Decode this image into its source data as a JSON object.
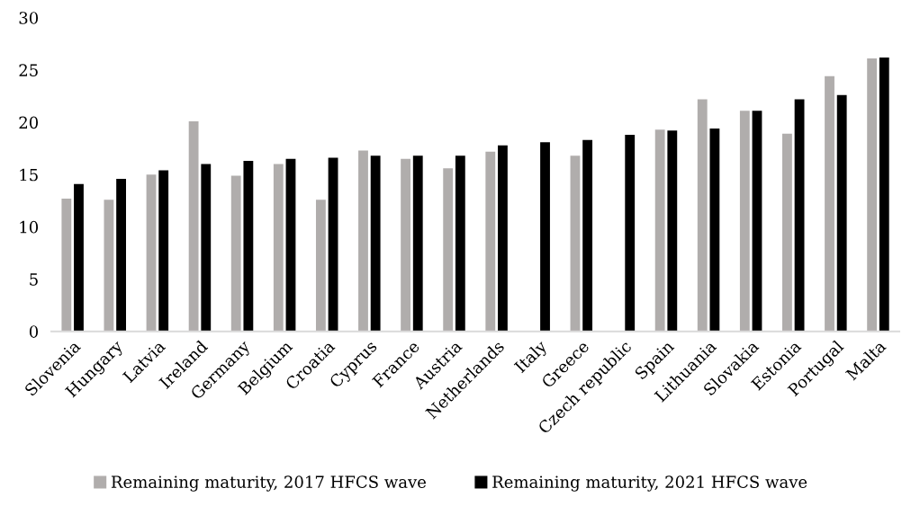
{
  "chart_data": {
    "type": "bar",
    "categories": [
      "Slovenia",
      "Hungary",
      "Latvia",
      "Ireland",
      "Germany",
      "Belgium",
      "Croatia",
      "Cyprus",
      "France",
      "Austria",
      "Netherlands",
      "Italy",
      "Greece",
      "Czech republic",
      "Spain",
      "Lithuania",
      "Slovakia",
      "Estonia",
      "Portugal",
      "Malta"
    ],
    "series": [
      {
        "name": "Remaining maturity, 2017 HFCS wave",
        "color": "#b0adac",
        "values": [
          12.7,
          12.6,
          15.0,
          20.1,
          14.9,
          16.0,
          12.6,
          17.3,
          16.5,
          15.6,
          17.2,
          null,
          16.8,
          null,
          19.3,
          22.2,
          21.1,
          18.9,
          24.4,
          26.1
        ]
      },
      {
        "name": "Remaining maturity, 2021 HFCS wave",
        "color": "#000000",
        "values": [
          14.1,
          14.6,
          15.4,
          16.0,
          16.3,
          16.5,
          16.6,
          16.8,
          16.8,
          16.8,
          17.8,
          18.1,
          18.3,
          18.8,
          19.2,
          19.4,
          21.1,
          22.2,
          22.6,
          26.2
        ]
      }
    ],
    "ylim": [
      0,
      30
    ],
    "yticks": [
      0,
      5,
      10,
      15,
      20,
      25,
      30
    ],
    "grid": false,
    "legend": "bottom"
  }
}
